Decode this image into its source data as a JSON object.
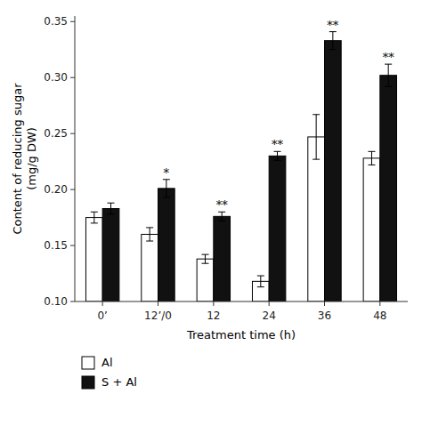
{
  "chart_data": {
    "type": "bar",
    "categories": [
      "0’",
      "12’/0",
      "12",
      "24",
      "36",
      "48"
    ],
    "series": [
      {
        "name": "Al",
        "color": "#ffffff",
        "values": [
          0.175,
          0.16,
          0.138,
          0.118,
          0.247,
          0.228
        ],
        "errors": [
          0.005,
          0.006,
          0.004,
          0.005,
          0.02,
          0.006
        ]
      },
      {
        "name": "S + Al",
        "color": "#111111",
        "values": [
          0.183,
          0.201,
          0.176,
          0.23,
          0.333,
          0.302
        ],
        "errors": [
          0.005,
          0.008,
          0.004,
          0.004,
          0.008,
          0.01
        ],
        "significance": [
          null,
          "*",
          "**",
          "**",
          "**",
          "**"
        ]
      }
    ],
    "xlabel": "Treatment time (h)",
    "ylabel": "Content of reducing sugar\n(mg/g DW)",
    "ylim": [
      0.1,
      0.355
    ],
    "yticks": [
      {
        "value": 0.1,
        "label": "0.10"
      },
      0.15,
      {
        "value": 0.2,
        "label": "0.20"
      },
      0.25,
      {
        "value": 0.3,
        "label": "0.30"
      },
      0.35
    ],
    "grid": false,
    "legend": "bottom"
  }
}
